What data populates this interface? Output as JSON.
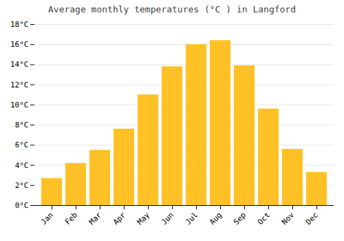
{
  "chart_data": {
    "type": "bar",
    "title": "Average monthly temperatures (°C ) in Langford",
    "categories": [
      "Jan",
      "Feb",
      "Mar",
      "Apr",
      "May",
      "Jun",
      "Jul",
      "Aug",
      "Sep",
      "Oct",
      "Nov",
      "Dec"
    ],
    "values": [
      2.7,
      4.2,
      5.5,
      7.6,
      11.0,
      13.8,
      16.0,
      16.4,
      13.9,
      9.6,
      5.6,
      3.3
    ],
    "color": "#FFC125",
    "ylim": [
      0,
      18
    ],
    "yticks": [
      {
        "value": 0,
        "label": "0°C"
      },
      {
        "value": 2,
        "label": "2°C"
      },
      {
        "value": 4,
        "label": "4°C"
      },
      {
        "value": 6,
        "label": "6°C"
      },
      {
        "value": 8,
        "label": "8°C"
      },
      {
        "value": 10,
        "label": "10°C"
      },
      {
        "value": 12,
        "label": "12°C"
      },
      {
        "value": 14,
        "label": "14°C"
      },
      {
        "value": 16,
        "label": "16°C"
      },
      {
        "value": 18,
        "label": "18°C"
      }
    ],
    "grid": true
  }
}
